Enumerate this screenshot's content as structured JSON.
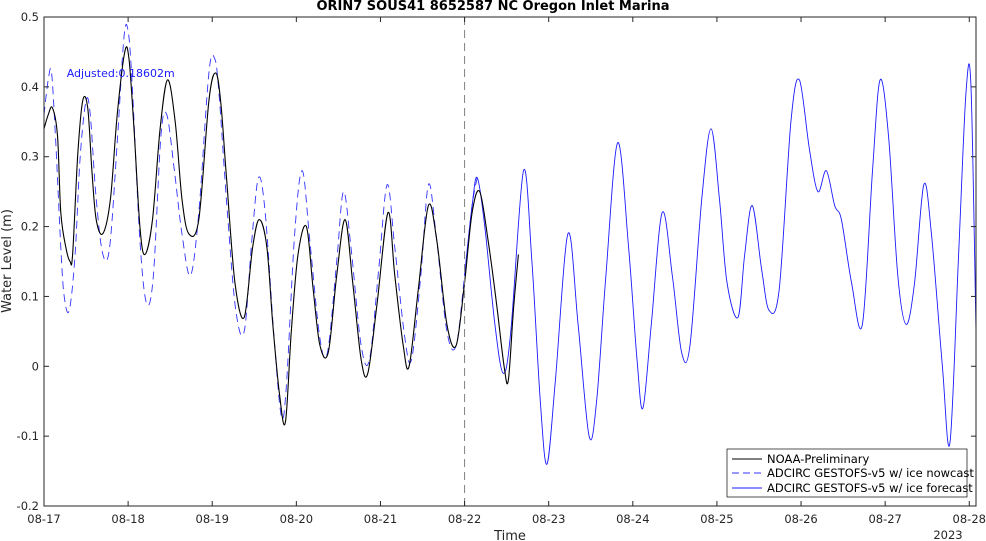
{
  "chart_data": {
    "type": "line",
    "title": "ORIN7 SOUS41 8652587 NC Oregon Inlet Marina",
    "xlabel": "Time",
    "ylabel": "Water Level (m)",
    "x_tick_labels": [
      "08-17",
      "08-18",
      "08-19",
      "08-20",
      "08-21",
      "08-22",
      "08-23",
      "08-24",
      "08-25",
      "08-26",
      "08-27",
      "08-28"
    ],
    "x_year_label": "2023",
    "xlim": [
      0,
      11.08
    ],
    "ylim": [
      -0.2,
      0.5
    ],
    "y_ticks": [
      -0.2,
      -0.1,
      0,
      0.1,
      0.2,
      0.3,
      0.4,
      0.5
    ],
    "y_tick_labels": [
      "-0.2",
      "-0.1",
      "0",
      "0.1",
      "0.2",
      "0.3",
      "0.4",
      "0.5"
    ],
    "grid": false,
    "legend_position": "bottom-right",
    "nowcast_forecast_divider_x": 5.0,
    "annotation": {
      "text": "Adjusted:0.18602m",
      "x": 0.27,
      "y": 0.42
    },
    "colors": {
      "observed": "#000000",
      "nowcast": "#3333ff",
      "forecast": "#1a1aff"
    },
    "series": [
      {
        "name": "NOAA-Preliminary",
        "style": "solid",
        "points": [
          [
            0.0,
            0.34
          ],
          [
            0.05,
            0.36
          ],
          [
            0.1,
            0.37
          ],
          [
            0.16,
            0.33
          ],
          [
            0.2,
            0.22
          ],
          [
            0.26,
            0.17
          ],
          [
            0.31,
            0.15
          ],
          [
            0.34,
            0.16
          ],
          [
            0.4,
            0.3
          ],
          [
            0.46,
            0.38
          ],
          [
            0.52,
            0.37
          ],
          [
            0.57,
            0.28
          ],
          [
            0.62,
            0.21
          ],
          [
            0.7,
            0.19
          ],
          [
            0.79,
            0.24
          ],
          [
            0.87,
            0.36
          ],
          [
            0.96,
            0.45
          ],
          [
            1.01,
            0.44
          ],
          [
            1.07,
            0.34
          ],
          [
            1.14,
            0.2
          ],
          [
            1.2,
            0.16
          ],
          [
            1.29,
            0.21
          ],
          [
            1.38,
            0.34
          ],
          [
            1.47,
            0.41
          ],
          [
            1.56,
            0.35
          ],
          [
            1.64,
            0.24
          ],
          [
            1.72,
            0.19
          ],
          [
            1.84,
            0.21
          ],
          [
            1.96,
            0.38
          ],
          [
            2.04,
            0.42
          ],
          [
            2.1,
            0.38
          ],
          [
            2.17,
            0.27
          ],
          [
            2.27,
            0.12
          ],
          [
            2.38,
            0.07
          ],
          [
            2.48,
            0.17
          ],
          [
            2.56,
            0.21
          ],
          [
            2.65,
            0.17
          ],
          [
            2.72,
            0.06
          ],
          [
            2.8,
            -0.04
          ],
          [
            2.87,
            -0.08
          ],
          [
            2.94,
            0.05
          ],
          [
            3.02,
            0.16
          ],
          [
            3.12,
            0.2
          ],
          [
            3.2,
            0.11
          ],
          [
            3.28,
            0.03
          ],
          [
            3.38,
            0.02
          ],
          [
            3.48,
            0.13
          ],
          [
            3.58,
            0.21
          ],
          [
            3.67,
            0.12
          ],
          [
            3.77,
            0.01
          ],
          [
            3.85,
            -0.01
          ],
          [
            3.96,
            0.09
          ],
          [
            4.09,
            0.22
          ],
          [
            4.17,
            0.13
          ],
          [
            4.27,
            0.03
          ],
          [
            4.34,
            0.0
          ],
          [
            4.45,
            0.11
          ],
          [
            4.57,
            0.23
          ],
          [
            4.67,
            0.18
          ],
          [
            4.79,
            0.06
          ],
          [
            4.9,
            0.03
          ],
          [
            5.0,
            0.12
          ],
          [
            5.09,
            0.22
          ],
          [
            5.18,
            0.25
          ],
          [
            5.28,
            0.18
          ],
          [
            5.38,
            0.09
          ],
          [
            5.47,
            0.0
          ],
          [
            5.52,
            -0.02
          ],
          [
            5.58,
            0.08
          ],
          [
            5.64,
            0.16
          ]
        ]
      },
      {
        "name": "ADCIRC GESTOFS-v5 w/ ice nowcast",
        "style": "dashed",
        "points": [
          [
            0.0,
            0.36
          ],
          [
            0.05,
            0.41
          ],
          [
            0.09,
            0.42
          ],
          [
            0.14,
            0.32
          ],
          [
            0.2,
            0.17
          ],
          [
            0.24,
            0.1
          ],
          [
            0.3,
            0.08
          ],
          [
            0.37,
            0.16
          ],
          [
            0.43,
            0.3
          ],
          [
            0.5,
            0.38
          ],
          [
            0.55,
            0.36
          ],
          [
            0.62,
            0.24
          ],
          [
            0.7,
            0.16
          ],
          [
            0.78,
            0.17
          ],
          [
            0.87,
            0.32
          ],
          [
            0.95,
            0.47
          ],
          [
            1.0,
            0.48
          ],
          [
            1.05,
            0.4
          ],
          [
            1.14,
            0.18
          ],
          [
            1.22,
            0.09
          ],
          [
            1.3,
            0.13
          ],
          [
            1.39,
            0.33
          ],
          [
            1.46,
            0.36
          ],
          [
            1.55,
            0.28
          ],
          [
            1.64,
            0.19
          ],
          [
            1.74,
            0.13
          ],
          [
            1.84,
            0.22
          ],
          [
            1.96,
            0.42
          ],
          [
            2.03,
            0.44
          ],
          [
            2.08,
            0.39
          ],
          [
            2.18,
            0.22
          ],
          [
            2.28,
            0.08
          ],
          [
            2.38,
            0.05
          ],
          [
            2.47,
            0.18
          ],
          [
            2.55,
            0.27
          ],
          [
            2.63,
            0.22
          ],
          [
            2.73,
            0.05
          ],
          [
            2.82,
            -0.07
          ],
          [
            2.88,
            -0.03
          ],
          [
            2.98,
            0.19
          ],
          [
            3.07,
            0.28
          ],
          [
            3.16,
            0.18
          ],
          [
            3.28,
            0.04
          ],
          [
            3.37,
            0.02
          ],
          [
            3.48,
            0.15
          ],
          [
            3.56,
            0.25
          ],
          [
            3.65,
            0.17
          ],
          [
            3.77,
            0.03
          ],
          [
            3.87,
            0.01
          ],
          [
            3.98,
            0.14
          ],
          [
            4.08,
            0.26
          ],
          [
            4.17,
            0.17
          ],
          [
            4.29,
            0.04
          ],
          [
            4.37,
            0.01
          ],
          [
            4.48,
            0.13
          ],
          [
            4.57,
            0.26
          ],
          [
            4.66,
            0.19
          ],
          [
            4.79,
            0.05
          ],
          [
            4.9,
            0.03
          ],
          [
            5.0,
            0.13
          ],
          [
            5.09,
            0.23
          ],
          [
            5.15,
            0.27
          ]
        ]
      },
      {
        "name": "ADCIRC GESTOFS-v5 w/ ice forecast",
        "style": "solid",
        "points": [
          [
            5.0,
            0.13
          ],
          [
            5.09,
            0.23
          ],
          [
            5.15,
            0.27
          ],
          [
            5.24,
            0.2
          ],
          [
            5.36,
            0.06
          ],
          [
            5.46,
            -0.01
          ],
          [
            5.55,
            0.05
          ],
          [
            5.7,
            0.28
          ],
          [
            5.8,
            0.15
          ],
          [
            5.9,
            -0.05
          ],
          [
            5.98,
            -0.14
          ],
          [
            6.08,
            -0.02
          ],
          [
            6.23,
            0.19
          ],
          [
            6.35,
            0.06
          ],
          [
            6.48,
            -0.1
          ],
          [
            6.57,
            -0.05
          ],
          [
            6.68,
            0.13
          ],
          [
            6.82,
            0.32
          ],
          [
            6.95,
            0.17
          ],
          [
            7.05,
            0.01
          ],
          [
            7.12,
            -0.06
          ],
          [
            7.22,
            0.06
          ],
          [
            7.35,
            0.22
          ],
          [
            7.47,
            0.13
          ],
          [
            7.58,
            0.02
          ],
          [
            7.68,
            0.03
          ],
          [
            7.82,
            0.24
          ],
          [
            7.93,
            0.34
          ],
          [
            8.03,
            0.24
          ],
          [
            8.12,
            0.12
          ],
          [
            8.25,
            0.07
          ],
          [
            8.33,
            0.16
          ],
          [
            8.42,
            0.23
          ],
          [
            8.53,
            0.14
          ],
          [
            8.62,
            0.08
          ],
          [
            8.74,
            0.11
          ],
          [
            8.88,
            0.35
          ],
          [
            8.98,
            0.41
          ],
          [
            9.1,
            0.31
          ],
          [
            9.2,
            0.25
          ],
          [
            9.3,
            0.28
          ],
          [
            9.4,
            0.23
          ],
          [
            9.48,
            0.21
          ],
          [
            9.6,
            0.12
          ],
          [
            9.73,
            0.06
          ],
          [
            9.85,
            0.28
          ],
          [
            9.94,
            0.41
          ],
          [
            10.04,
            0.33
          ],
          [
            10.15,
            0.13
          ],
          [
            10.25,
            0.06
          ],
          [
            10.35,
            0.12
          ],
          [
            10.46,
            0.26
          ],
          [
            10.55,
            0.19
          ],
          [
            10.68,
            0.0
          ],
          [
            10.77,
            -0.11
          ],
          [
            10.87,
            0.15
          ],
          [
            10.96,
            0.39
          ],
          [
            11.02,
            0.4
          ],
          [
            11.08,
            0.05
          ]
        ]
      }
    ]
  }
}
